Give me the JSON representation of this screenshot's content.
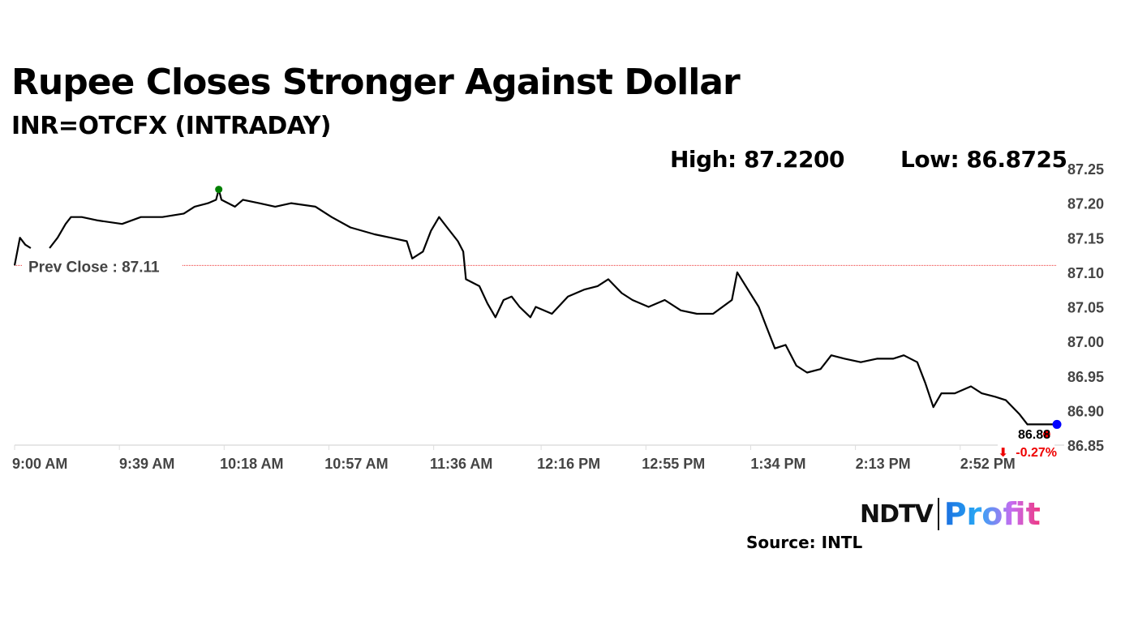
{
  "chart_data": {
    "type": "line",
    "title": "Rupee Closes Stronger Against Dollar",
    "subtitle": "INR=OTCFX (INTRADAY)",
    "high_label": "High: 87.2200",
    "low_label": "Low: 86.8725",
    "prev_close_label": "Prev Close : 87.11",
    "prev_close": 87.11,
    "last_value_label": "86.88",
    "change_label": "-0.27%",
    "change_arrow": "⬇",
    "x_unit": "minutes after 9:00 AM",
    "xlim": [
      0,
      388
    ],
    "ylim": [
      86.85,
      87.25
    ],
    "y_ticks": [
      "87.25",
      "87.20",
      "87.15",
      "87.10",
      "87.05",
      "87.00",
      "86.95",
      "86.90",
      "86.85"
    ],
    "x_ticks": [
      {
        "t": 0,
        "label": "9:00 AM"
      },
      {
        "t": 39,
        "label": "9:39 AM"
      },
      {
        "t": 78,
        "label": "10:18 AM"
      },
      {
        "t": 117,
        "label": "10:57 AM"
      },
      {
        "t": 156,
        "label": "11:36 AM"
      },
      {
        "t": 196,
        "label": "12:16 PM"
      },
      {
        "t": 235,
        "label": "12:55 PM"
      },
      {
        "t": 274,
        "label": "1:34 PM"
      },
      {
        "t": 313,
        "label": "2:13 PM"
      },
      {
        "t": 352,
        "label": "2:52 PM"
      }
    ],
    "series": [
      {
        "name": "INR=OTCFX",
        "color": "#000000",
        "points": [
          [
            0,
            87.11
          ],
          [
            2,
            87.15
          ],
          [
            4,
            87.14
          ],
          [
            6,
            87.135
          ],
          [
            13,
            87.135
          ],
          [
            16,
            87.15
          ],
          [
            19,
            87.17
          ],
          [
            21,
            87.18
          ],
          [
            25,
            87.18
          ],
          [
            31,
            87.175
          ],
          [
            40,
            87.17
          ],
          [
            47,
            87.18
          ],
          [
            55,
            87.18
          ],
          [
            63,
            87.185
          ],
          [
            67,
            87.195
          ],
          [
            72,
            87.2
          ],
          [
            75,
            87.205
          ],
          [
            76,
            87.22
          ],
          [
            77,
            87.205
          ],
          [
            82,
            87.195
          ],
          [
            85,
            87.205
          ],
          [
            91,
            87.2
          ],
          [
            97,
            87.195
          ],
          [
            103,
            87.2
          ],
          [
            112,
            87.195
          ],
          [
            118,
            87.18
          ],
          [
            125,
            87.165
          ],
          [
            134,
            87.155
          ],
          [
            140,
            87.15
          ],
          [
            146,
            87.145
          ],
          [
            148,
            87.12
          ],
          [
            152,
            87.13
          ],
          [
            155,
            87.16
          ],
          [
            158,
            87.18
          ],
          [
            161,
            87.165
          ],
          [
            165,
            87.145
          ],
          [
            167,
            87.13
          ],
          [
            168,
            87.09
          ],
          [
            173,
            87.08
          ],
          [
            176,
            87.055
          ],
          [
            179,
            87.035
          ],
          [
            182,
            87.06
          ],
          [
            185,
            87.065
          ],
          [
            188,
            87.05
          ],
          [
            192,
            87.035
          ],
          [
            194,
            87.05
          ],
          [
            200,
            87.04
          ],
          [
            206,
            87.065
          ],
          [
            212,
            87.075
          ],
          [
            217,
            87.08
          ],
          [
            221,
            87.09
          ],
          [
            226,
            87.07
          ],
          [
            230,
            87.06
          ],
          [
            236,
            87.05
          ],
          [
            242,
            87.06
          ],
          [
            248,
            87.045
          ],
          [
            254,
            87.04
          ],
          [
            260,
            87.04
          ],
          [
            267,
            87.06
          ],
          [
            269,
            87.1
          ],
          [
            273,
            87.075
          ],
          [
            277,
            87.05
          ],
          [
            280,
            87.02
          ],
          [
            283,
            86.99
          ],
          [
            287,
            86.995
          ],
          [
            291,
            86.965
          ],
          [
            295,
            86.955
          ],
          [
            300,
            86.96
          ],
          [
            304,
            86.98
          ],
          [
            309,
            86.975
          ],
          [
            315,
            86.97
          ],
          [
            321,
            86.975
          ],
          [
            327,
            86.975
          ],
          [
            331,
            86.98
          ],
          [
            336,
            86.97
          ],
          [
            339,
            86.94
          ],
          [
            342,
            86.905
          ],
          [
            345,
            86.925
          ],
          [
            350,
            86.925
          ],
          [
            356,
            86.935
          ],
          [
            360,
            86.925
          ],
          [
            365,
            86.92
          ],
          [
            369,
            86.915
          ],
          [
            374,
            86.895
          ],
          [
            377,
            86.88
          ],
          [
            384,
            86.88
          ],
          [
            388,
            86.88
          ]
        ]
      }
    ],
    "markers": {
      "high": {
        "t": 76,
        "value": 87.22,
        "color": "#008000"
      },
      "last": {
        "t": 388,
        "value": 86.88,
        "color": "#0000ff"
      },
      "close": {
        "t": 386,
        "value": 86.873,
        "color": "#ff0000"
      }
    }
  },
  "footer": {
    "logo_ndtv": "NDTV",
    "logo_profit": "Profit",
    "source": "Source: INTL"
  }
}
